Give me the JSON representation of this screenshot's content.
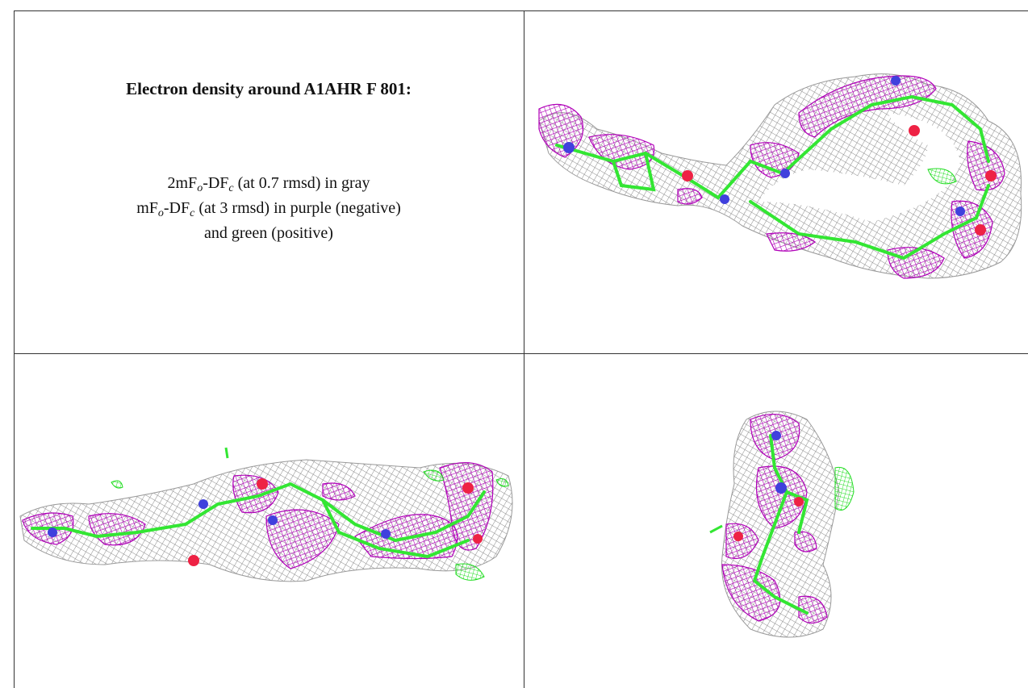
{
  "title": "Electron density around A1AHR F 801:",
  "legend_lines": [
    [
      "2mF",
      "o",
      "-DF",
      "c",
      " (at 0.7 rmsd) in gray"
    ],
    [
      "mF",
      "o",
      "-DF",
      "c",
      " (at 3 rmsd) in purple (negative)"
    ],
    [
      "and green (positive)"
    ]
  ]
}
